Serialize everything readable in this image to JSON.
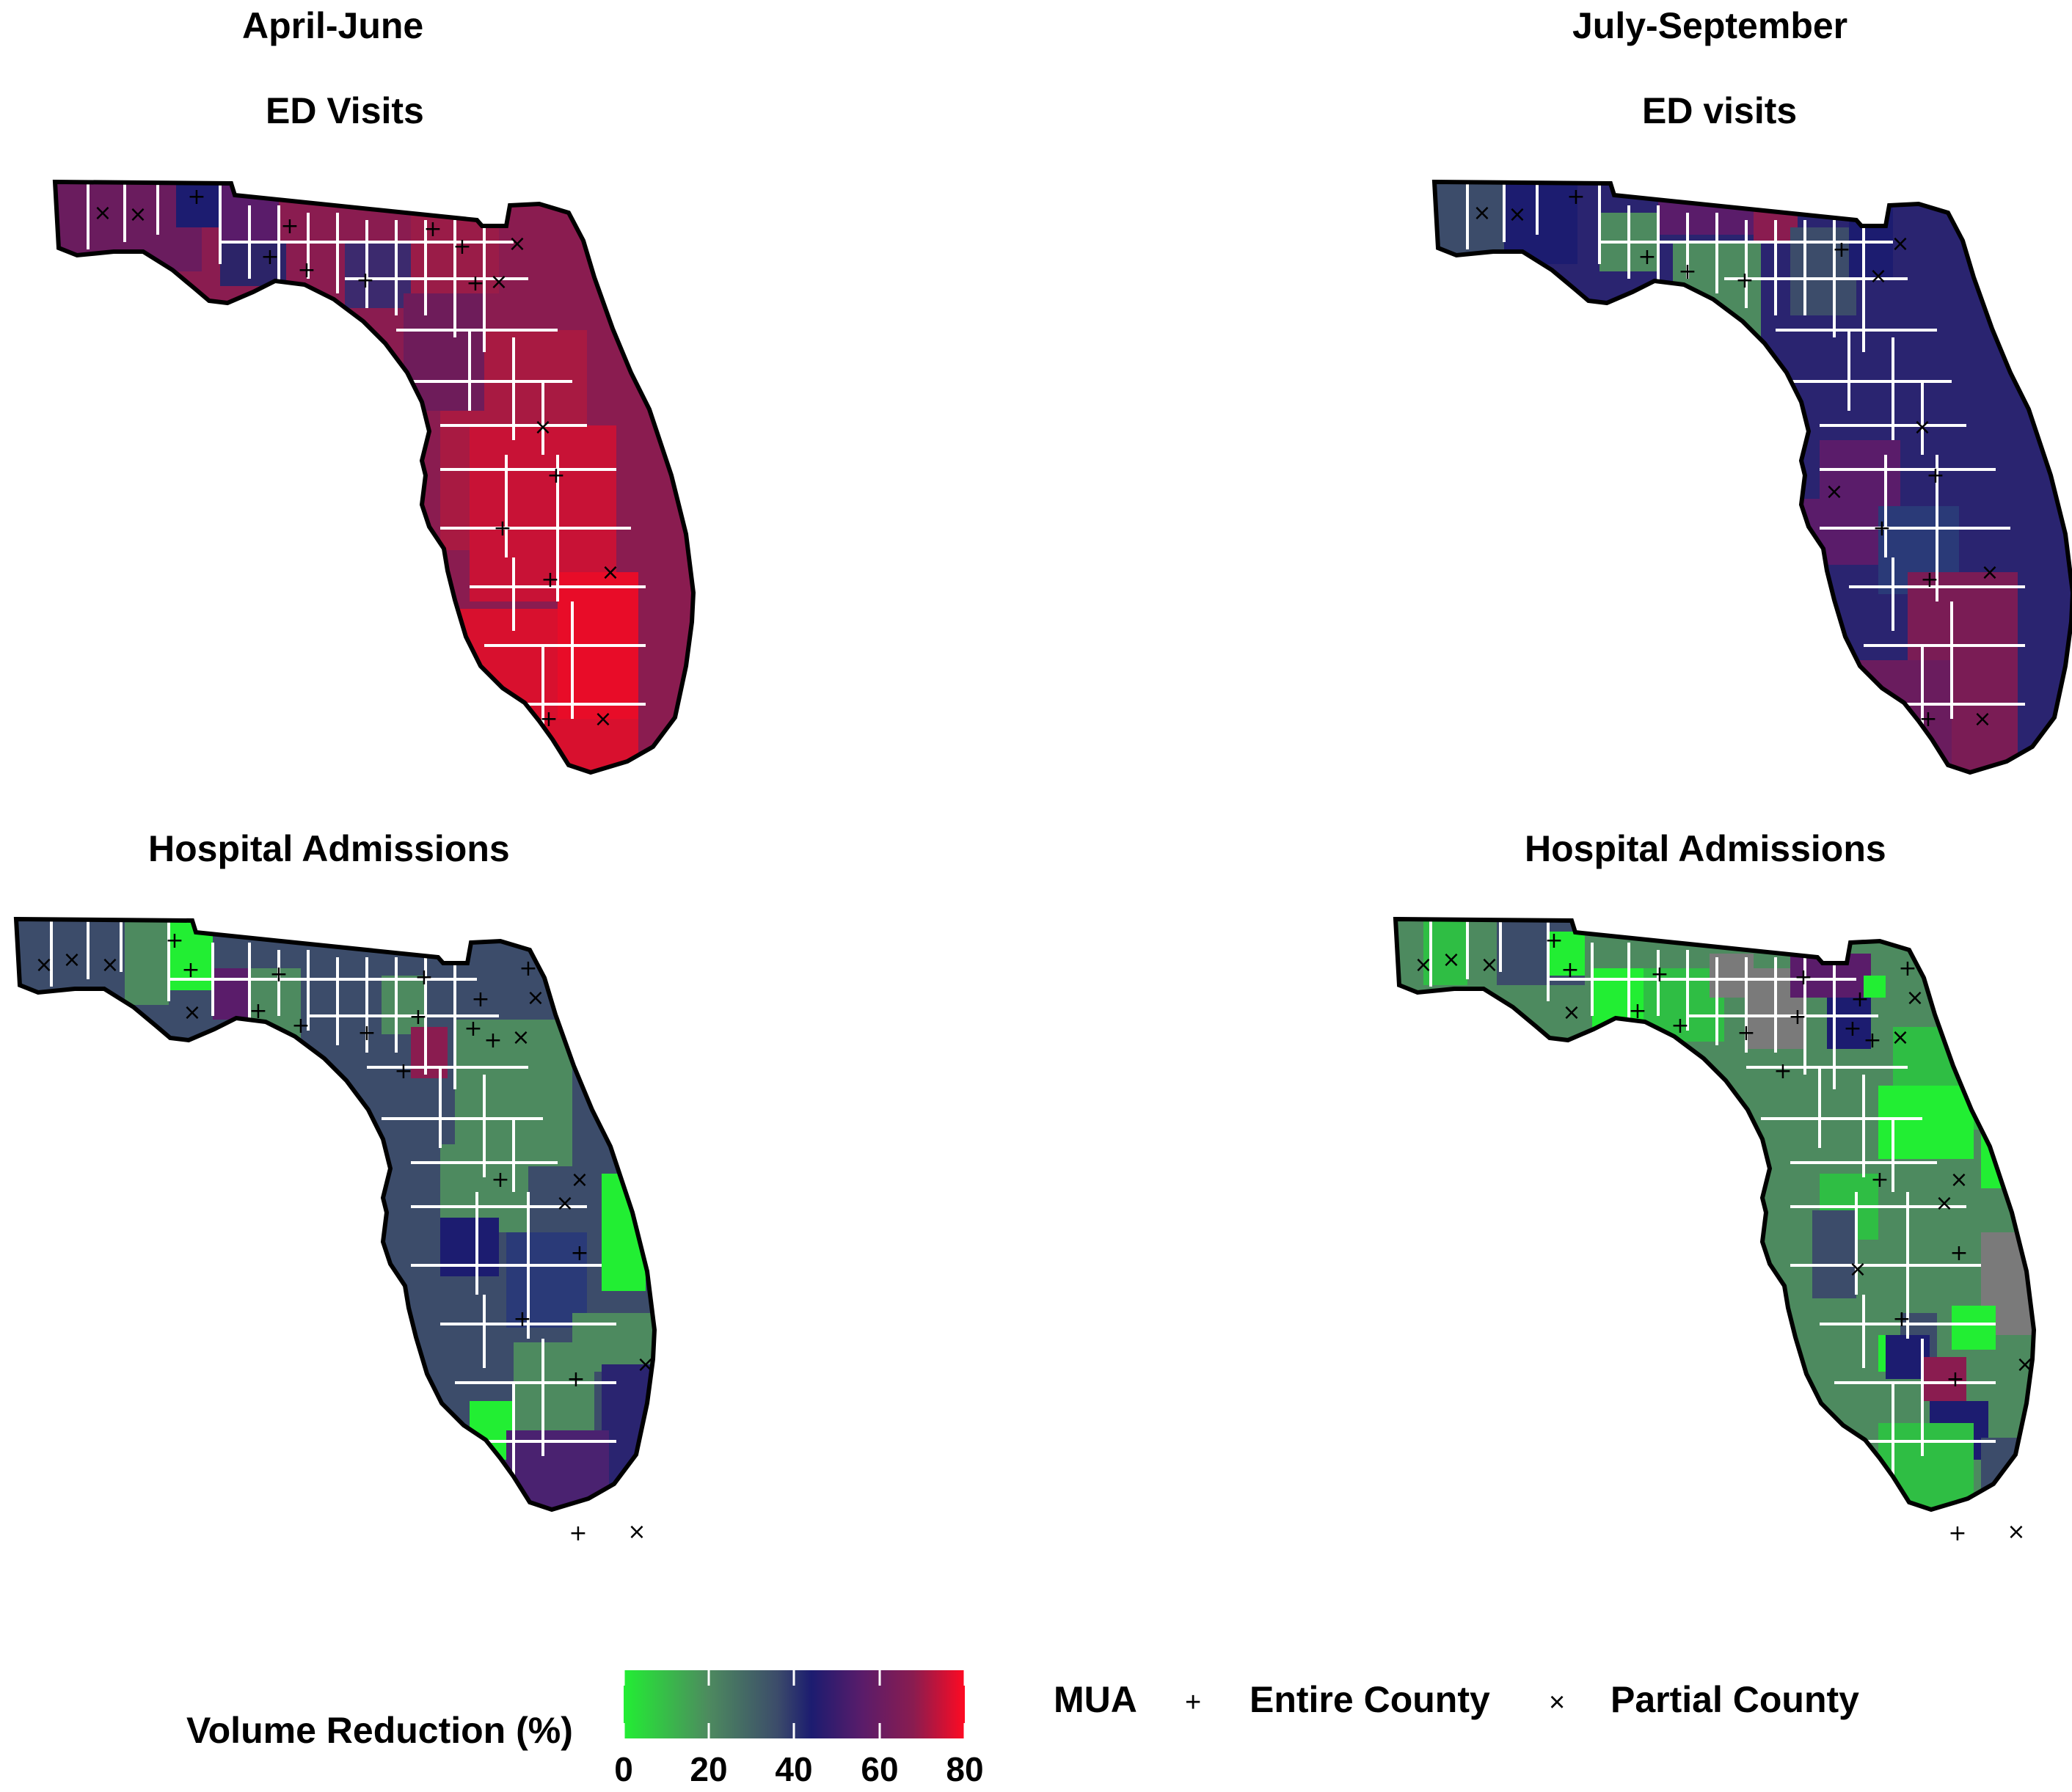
{
  "panels": {
    "top_left": {
      "period": "April-June",
      "subtitle": "ED Visits"
    },
    "top_right": {
      "period": "July-September",
      "subtitle": "ED visits"
    },
    "bottom_left": {
      "subtitle": "Hospital Admissions"
    },
    "bottom_right": {
      "subtitle": "Hospital Admissions"
    }
  },
  "legend": {
    "title": "Volume Reduction (%)",
    "ticks": [
      "0",
      "20",
      "40",
      "60",
      "80"
    ],
    "tick_values": [
      0,
      20,
      40,
      60,
      80
    ],
    "range": [
      0,
      80
    ],
    "colors": [
      "#22ee33",
      "#4d8a5f",
      "#3c4c6a",
      "#1c1c70",
      "#5a1c6a",
      "#8a1c50",
      "#ff0a22"
    ],
    "mua_title": "MUA",
    "entire_county_symbol": "+",
    "entire_county_label": "Entire County",
    "partial_county_symbol": "×",
    "partial_county_label": "Partial County"
  },
  "map_colors": {
    "county_border": "#ffffff",
    "state_outline": "#000000"
  }
}
